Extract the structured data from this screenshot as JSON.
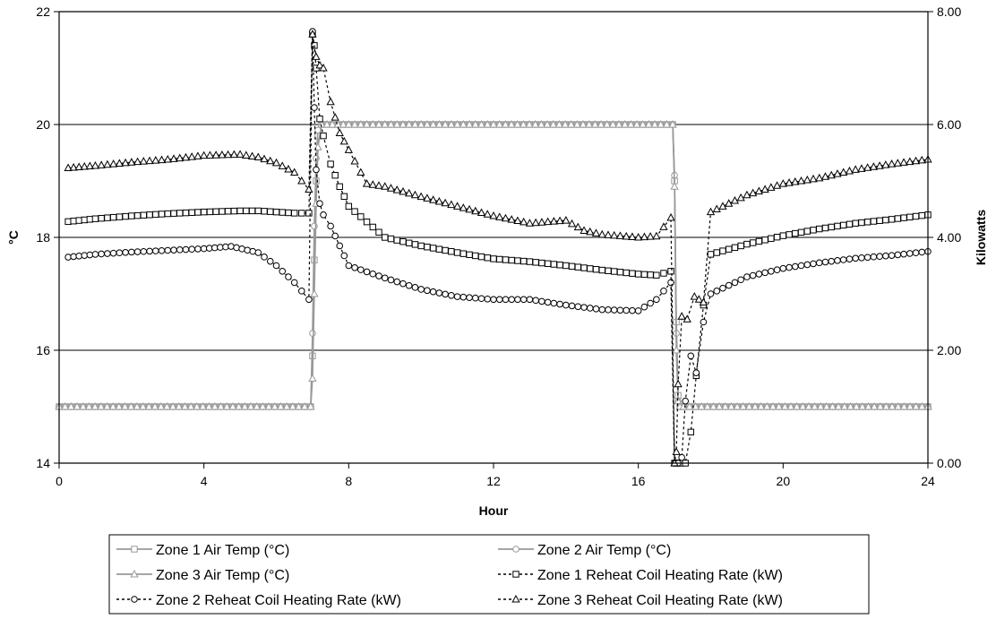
{
  "chart_data": {
    "type": "line",
    "title": "",
    "xlabel": "Hour",
    "ylabel_left": "°C",
    "ylabel_right": "Kilowatts",
    "xlim": [
      0,
      24
    ],
    "ylim_left": [
      14,
      22
    ],
    "ylim_right": [
      0,
      8
    ],
    "x_ticks": [
      "0",
      "4",
      "8",
      "12",
      "16",
      "20",
      "24"
    ],
    "y_left_ticks": [
      "14",
      "16",
      "18",
      "20",
      "22"
    ],
    "y_right_ticks": [
      "0.00",
      "2.00",
      "4.00",
      "6.00",
      "8.00"
    ],
    "grid": "horizontal",
    "legend_position": "bottom",
    "series": [
      {
        "name": "Zone 1 Air Temp (°C)",
        "axis": "left",
        "style": "solid",
        "marker": "square",
        "color": "#999999",
        "x": [
          0,
          6.95,
          7.0,
          7.05,
          7.1,
          7.15,
          7.25,
          8,
          12,
          16.95,
          17.0,
          17.05,
          17.1,
          17.15,
          17.25,
          24
        ],
        "y": [
          15.0,
          15.0,
          15.9,
          17.6,
          19.0,
          19.8,
          20.0,
          20.0,
          20.0,
          20.0,
          19.0,
          16.5,
          15.2,
          15.0,
          15.0,
          15.0
        ]
      },
      {
        "name": "Zone 2 Air Temp (°C)",
        "axis": "left",
        "style": "solid",
        "marker": "circle",
        "color": "#999999",
        "x": [
          0,
          6.95,
          7.0,
          7.05,
          7.1,
          7.15,
          7.25,
          8,
          12,
          16.95,
          17.0,
          17.05,
          17.1,
          17.15,
          17.25,
          24
        ],
        "y": [
          15.0,
          15.0,
          16.3,
          18.2,
          19.4,
          19.9,
          20.0,
          20.0,
          20.0,
          20.0,
          19.1,
          16.3,
          15.1,
          15.0,
          15.0,
          15.0
        ]
      },
      {
        "name": "Zone 3 Air Temp (°C)",
        "axis": "left",
        "style": "solid",
        "marker": "triangle",
        "color": "#999999",
        "x": [
          0,
          6.95,
          7.0,
          7.05,
          7.1,
          7.15,
          7.25,
          8,
          12,
          16.95,
          17.0,
          17.05,
          17.1,
          17.15,
          17.25,
          24
        ],
        "y": [
          15.0,
          15.0,
          15.5,
          17.0,
          18.6,
          19.6,
          20.0,
          20.0,
          20.0,
          20.0,
          18.9,
          16.0,
          15.1,
          15.0,
          15.0,
          15.0
        ]
      },
      {
        "name": "Zone 1 Reheat Coil Heating Rate (kW)",
        "axis": "right",
        "style": "dashed",
        "marker": "square",
        "color": "#000000",
        "x": [
          0.25,
          1,
          2,
          3,
          4,
          5,
          5.5,
          6,
          6.5,
          6.9,
          7.0,
          7.05,
          7.1,
          7.2,
          7.3,
          7.5,
          7.75,
          8,
          9,
          10,
          11,
          12,
          13,
          14,
          15,
          16,
          16.5,
          16.9,
          17.0,
          17.05,
          17.1,
          17.2,
          17.3,
          17.45,
          17.6,
          17.8,
          18,
          19,
          20,
          21,
          22,
          23,
          24
        ],
        "y": [
          4.28,
          4.33,
          4.38,
          4.42,
          4.45,
          4.47,
          4.47,
          4.45,
          4.43,
          4.43,
          7.6,
          7.4,
          7.0,
          6.1,
          5.8,
          5.3,
          4.9,
          4.55,
          4.0,
          3.85,
          3.73,
          3.62,
          3.57,
          3.5,
          3.42,
          3.35,
          3.33,
          3.4,
          0.0,
          0.0,
          0.0,
          0.0,
          0.0,
          0.55,
          1.55,
          2.8,
          3.7,
          3.88,
          4.03,
          4.15,
          4.25,
          4.32,
          4.4
        ]
      },
      {
        "name": "Zone 2 Reheat Coil Heating Rate (kW)",
        "axis": "right",
        "style": "dashed",
        "marker": "circle",
        "color": "#000000",
        "x": [
          0.25,
          1,
          2,
          3,
          4,
          4.75,
          5.5,
          6,
          6.5,
          6.9,
          7.0,
          7.05,
          7.1,
          7.2,
          7.3,
          7.5,
          7.75,
          8,
          9,
          10,
          11,
          12,
          13,
          14,
          15,
          16,
          16.5,
          16.9,
          17.0,
          17.05,
          17.1,
          17.2,
          17.3,
          17.45,
          17.6,
          17.8,
          18,
          19,
          20,
          21,
          22,
          23,
          24
        ],
        "y": [
          3.65,
          3.7,
          3.74,
          3.77,
          3.8,
          3.84,
          3.73,
          3.5,
          3.2,
          2.9,
          7.65,
          6.3,
          5.2,
          4.6,
          4.4,
          4.2,
          3.85,
          3.5,
          3.28,
          3.08,
          2.95,
          2.9,
          2.9,
          2.8,
          2.72,
          2.7,
          2.9,
          3.2,
          0.0,
          0.0,
          0.0,
          0.1,
          1.1,
          1.9,
          1.6,
          2.5,
          3.0,
          3.3,
          3.45,
          3.55,
          3.63,
          3.68,
          3.75
        ]
      },
      {
        "name": "Zone 3 Reheat Coil Heating Rate (kW)",
        "axis": "right",
        "style": "dashed",
        "marker": "triangle",
        "color": "#000000",
        "x": [
          0.25,
          1,
          2,
          3,
          4,
          5,
          5.5,
          6,
          6.5,
          6.9,
          7.0,
          7.1,
          7.2,
          7.3,
          7.5,
          7.75,
          8,
          8.5,
          9,
          10,
          11,
          12,
          13,
          14,
          14.5,
          15,
          16,
          16.5,
          16.9,
          17.0,
          17.05,
          17.1,
          17.2,
          17.35,
          17.55,
          17.8,
          18,
          18.5,
          19,
          20,
          21,
          22,
          23,
          24
        ],
        "y": [
          5.23,
          5.27,
          5.33,
          5.38,
          5.45,
          5.47,
          5.42,
          5.32,
          5.15,
          4.85,
          7.6,
          7.2,
          7.05,
          7.0,
          6.4,
          5.85,
          5.55,
          4.95,
          4.9,
          4.72,
          4.55,
          4.38,
          4.25,
          4.3,
          4.12,
          4.05,
          4.0,
          4.02,
          4.35,
          0.0,
          0.2,
          1.4,
          2.6,
          2.55,
          2.95,
          2.85,
          4.45,
          4.6,
          4.75,
          4.95,
          5.05,
          5.2,
          5.3,
          5.38
        ]
      }
    ]
  }
}
